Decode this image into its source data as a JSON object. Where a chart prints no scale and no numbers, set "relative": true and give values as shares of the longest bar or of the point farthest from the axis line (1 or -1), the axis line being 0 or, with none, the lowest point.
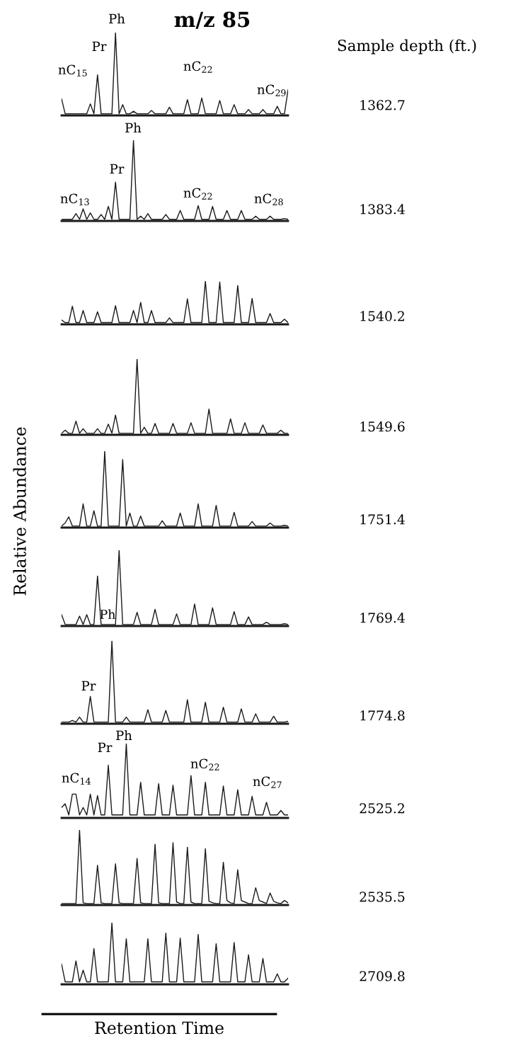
{
  "chart_data": [
    {
      "type": "line",
      "relative": true,
      "title": "m/z 85",
      "color": "#1a1a1a",
      "categories": [
        null,
        null,
        null,
        null,
        null,
        null,
        null,
        null,
        null,
        null,
        null,
        null,
        null,
        null,
        null,
        null,
        null,
        null,
        null,
        null,
        null,
        null,
        null,
        null,
        null,
        null,
        null,
        null,
        null,
        null,
        null,
        null,
        null,
        null,
        null,
        null,
        null,
        null,
        null,
        null,
        null,
        null,
        null,
        null,
        null,
        null,
        null,
        null,
        null,
        null,
        null,
        null,
        null,
        null,
        null,
        null,
        null,
        null,
        null,
        null,
        null,
        null,
        null,
        null
      ],
      "values": [
        0.2,
        0.02,
        0.02,
        0.02,
        0.02,
        0.02,
        0.02,
        0.02,
        0.14,
        0.02,
        0.49,
        0.02,
        0.02,
        0.02,
        0.02,
        1,
        0.02,
        0.13,
        0.02,
        0.02,
        0.05,
        0.02,
        0.02,
        0.02,
        0.02,
        0.06,
        0.02,
        0.02,
        0.02,
        0.02,
        0.1,
        0.02,
        0.02,
        0.02,
        0.02,
        0.19,
        0.02,
        0.02,
        0.02,
        0.21,
        0.02,
        0.02,
        0.02,
        0.02,
        0.18,
        0.02,
        0.02,
        0.02,
        0.13,
        0.02,
        0.02,
        0.02,
        0.07,
        0.02,
        0.02,
        0.02,
        0.07,
        0.02,
        0.02,
        0.02,
        0.11,
        0.02,
        0.02,
        0.31
      ],
      "annotations": [
        "1362.7",
        "Sample depth (ft.)",
        "Ph",
        "Pr",
        "nC$_{15}$",
        "nC$_{22}$",
        "nC$_{29}$"
      ]
    },
    {
      "type": "line",
      "relative": true,
      "color": "#1a1a1a",
      "categories": [
        null,
        null,
        null,
        null,
        null,
        null,
        null,
        null,
        null,
        null,
        null,
        null,
        null,
        null,
        null,
        null,
        null,
        null,
        null,
        null,
        null,
        null,
        null,
        null,
        null,
        null,
        null,
        null,
        null,
        null,
        null,
        null,
        null,
        null,
        null,
        null,
        null,
        null,
        null,
        null,
        null,
        null,
        null,
        null,
        null,
        null,
        null,
        null,
        null,
        null,
        null,
        null,
        null,
        null,
        null,
        null,
        null,
        null,
        null,
        null,
        null,
        null,
        null,
        null
      ],
      "values": [
        0.02,
        0.02,
        0.02,
        0.02,
        0.09,
        0.02,
        0.15,
        0.02,
        0.1,
        0.02,
        0.02,
        0.08,
        0.02,
        0.18,
        0.02,
        0.48,
        0.02,
        0.02,
        0.02,
        0.02,
        1,
        0.02,
        0.06,
        0.02,
        0.09,
        0.02,
        0.02,
        0.02,
        0.02,
        0.08,
        0.02,
        0.02,
        0.02,
        0.13,
        0.02,
        0.02,
        0.02,
        0.02,
        0.19,
        0.02,
        0.02,
        0.02,
        0.18,
        0.02,
        0.02,
        0.02,
        0.13,
        0.02,
        0.02,
        0.02,
        0.13,
        0.02,
        0.02,
        0.02,
        0.06,
        0.02,
        0.02,
        0.02,
        0.06,
        0.02,
        0.02,
        0.02,
        0.03,
        0.02
      ],
      "annotations": [
        "1383.4",
        "Ph",
        "Pr",
        "nC$_{13}$",
        "nC$_{22}$",
        "nC$_{28}$"
      ]
    },
    {
      "type": "line",
      "relative": true,
      "color": "#1a1a1a",
      "categories": [
        null,
        null,
        null,
        null,
        null,
        null,
        null,
        null,
        null,
        null,
        null,
        null,
        null,
        null,
        null,
        null,
        null,
        null,
        null,
        null,
        null,
        null,
        null,
        null,
        null,
        null,
        null,
        null,
        null,
        null,
        null,
        null,
        null,
        null,
        null,
        null,
        null,
        null,
        null,
        null,
        null,
        null,
        null,
        null,
        null,
        null,
        null,
        null,
        null,
        null,
        null,
        null,
        null,
        null,
        null,
        null,
        null,
        null,
        null,
        null,
        null,
        null,
        null,
        null
      ],
      "values": [
        0.1,
        0.04,
        0.04,
        0.42,
        0.04,
        0.04,
        0.32,
        0.04,
        0.04,
        0.04,
        0.29,
        0.04,
        0.04,
        0.04,
        0.04,
        0.43,
        0.04,
        0.04,
        0.04,
        0.04,
        0.32,
        0.04,
        0.51,
        0.04,
        0.04,
        0.32,
        0.04,
        0.04,
        0.04,
        0.04,
        0.15,
        0.04,
        0.04,
        0.04,
        0.04,
        0.59,
        0.04,
        0.04,
        0.04,
        0.04,
        1,
        0.04,
        0.04,
        0.04,
        0.98,
        0.04,
        0.04,
        0.04,
        0.04,
        0.9,
        0.04,
        0.04,
        0.04,
        0.6,
        0.04,
        0.04,
        0.04,
        0.04,
        0.25,
        0.04,
        0.04,
        0.04,
        0.12,
        0.04
      ],
      "annotations": [
        "1540.2"
      ]
    },
    {
      "type": "line",
      "relative": true,
      "color": "#1a1a1a",
      "categories": [
        null,
        null,
        null,
        null,
        null,
        null,
        null,
        null,
        null,
        null,
        null,
        null,
        null,
        null,
        null,
        null,
        null,
        null,
        null,
        null,
        null,
        null,
        null,
        null,
        null,
        null,
        null,
        null,
        null,
        null,
        null,
        null,
        null,
        null,
        null,
        null,
        null,
        null,
        null,
        null,
        null,
        null,
        null,
        null,
        null,
        null,
        null,
        null,
        null,
        null,
        null,
        null,
        null,
        null,
        null,
        null,
        null,
        null,
        null,
        null,
        null,
        null,
        null,
        null
      ],
      "values": [
        0.02,
        0.06,
        0.02,
        0.02,
        0.18,
        0.02,
        0.08,
        0.02,
        0.02,
        0.02,
        0.08,
        0.02,
        0.02,
        0.14,
        0.02,
        0.26,
        0.02,
        0.02,
        0.02,
        0.02,
        0.02,
        1,
        0.02,
        0.1,
        0.02,
        0.02,
        0.15,
        0.02,
        0.02,
        0.02,
        0.02,
        0.15,
        0.02,
        0.02,
        0.02,
        0.02,
        0.16,
        0.02,
        0.02,
        0.02,
        0.02,
        0.34,
        0.02,
        0.02,
        0.02,
        0.02,
        0.02,
        0.21,
        0.02,
        0.02,
        0.02,
        0.16,
        0.02,
        0.02,
        0.02,
        0.02,
        0.13,
        0.02,
        0.02,
        0.02,
        0.02,
        0.06,
        0.02,
        0.02
      ],
      "annotations": [
        "1549.6"
      ]
    },
    {
      "type": "line",
      "relative": true,
      "ylabel": "Relative Abundance",
      "color": "#1a1a1a",
      "categories": [
        null,
        null,
        null,
        null,
        null,
        null,
        null,
        null,
        null,
        null,
        null,
        null,
        null,
        null,
        null,
        null,
        null,
        null,
        null,
        null,
        null,
        null,
        null,
        null,
        null,
        null,
        null,
        null,
        null,
        null,
        null,
        null,
        null,
        null,
        null,
        null,
        null,
        null,
        null,
        null,
        null,
        null,
        null,
        null,
        null,
        null,
        null,
        null,
        null,
        null,
        null,
        null,
        null,
        null,
        null,
        null,
        null,
        null,
        null,
        null,
        null,
        null,
        null,
        null
      ],
      "values": [
        0.02,
        0.06,
        0.14,
        0.02,
        0.02,
        0.02,
        0.31,
        0.02,
        0.02,
        0.22,
        0.02,
        0.02,
        1,
        0.02,
        0.02,
        0.02,
        0.02,
        0.89,
        0.02,
        0.19,
        0.02,
        0.02,
        0.15,
        0.02,
        0.02,
        0.02,
        0.02,
        0.02,
        0.09,
        0.02,
        0.02,
        0.02,
        0.02,
        0.19,
        0.02,
        0.02,
        0.02,
        0.02,
        0.31,
        0.02,
        0.02,
        0.02,
        0.02,
        0.29,
        0.02,
        0.02,
        0.02,
        0.02,
        0.2,
        0.02,
        0.02,
        0.02,
        0.02,
        0.08,
        0.02,
        0.02,
        0.02,
        0.02,
        0.06,
        0.02,
        0.02,
        0.02,
        0.03,
        0.02
      ],
      "annotations": [
        "1751.4"
      ]
    },
    {
      "type": "line",
      "relative": true,
      "color": "#1a1a1a",
      "categories": [
        null,
        null,
        null,
        null,
        null,
        null,
        null,
        null,
        null,
        null,
        null,
        null,
        null,
        null,
        null,
        null,
        null,
        null,
        null,
        null,
        null,
        null,
        null,
        null,
        null,
        null,
        null,
        null,
        null,
        null,
        null,
        null,
        null,
        null,
        null,
        null,
        null,
        null,
        null,
        null,
        null,
        null,
        null,
        null,
        null,
        null,
        null,
        null,
        null,
        null,
        null,
        null,
        null,
        null,
        null,
        null,
        null,
        null,
        null,
        null,
        null,
        null,
        null,
        null
      ],
      "values": [
        0.15,
        0.02,
        0.02,
        0.02,
        0.02,
        0.13,
        0.02,
        0.15,
        0.02,
        0.02,
        0.66,
        0.02,
        0.02,
        0.02,
        0.02,
        0.02,
        1,
        0.02,
        0.02,
        0.02,
        0.02,
        0.18,
        0.02,
        0.02,
        0.02,
        0.02,
        0.22,
        0.02,
        0.02,
        0.02,
        0.02,
        0.02,
        0.16,
        0.02,
        0.02,
        0.02,
        0.02,
        0.29,
        0.02,
        0.02,
        0.02,
        0.02,
        0.24,
        0.02,
        0.02,
        0.02,
        0.02,
        0.02,
        0.19,
        0.02,
        0.02,
        0.02,
        0.12,
        0.02,
        0.02,
        0.02,
        0.02,
        0.05,
        0.02,
        0.02,
        0.02,
        0.02,
        0.03,
        0.02
      ],
      "annotations": [
        "1769.4"
      ]
    },
    {
      "type": "line",
      "relative": true,
      "color": "#1a1a1a",
      "categories": [
        null,
        null,
        null,
        null,
        null,
        null,
        null,
        null,
        null,
        null,
        null,
        null,
        null,
        null,
        null,
        null,
        null,
        null,
        null,
        null,
        null,
        null,
        null,
        null,
        null,
        null,
        null,
        null,
        null,
        null,
        null,
        null,
        null,
        null,
        null,
        null,
        null,
        null,
        null,
        null,
        null,
        null,
        null,
        null,
        null,
        null,
        null,
        null,
        null,
        null,
        null,
        null,
        null,
        null,
        null,
        null,
        null,
        null,
        null,
        null,
        null,
        null,
        null,
        null
      ],
      "values": [
        0.02,
        0.02,
        0.02,
        0.04,
        0.02,
        0.08,
        0.02,
        0.02,
        0.33,
        0.02,
        0.02,
        0.02,
        0.02,
        0.02,
        1,
        0.02,
        0.02,
        0.02,
        0.08,
        0.02,
        0.02,
        0.02,
        0.02,
        0.02,
        0.17,
        0.02,
        0.02,
        0.02,
        0.02,
        0.16,
        0.02,
        0.02,
        0.02,
        0.02,
        0.02,
        0.29,
        0.02,
        0.02,
        0.02,
        0.02,
        0.26,
        0.02,
        0.02,
        0.02,
        0.02,
        0.2,
        0.02,
        0.02,
        0.02,
        0.02,
        0.18,
        0.02,
        0.02,
        0.02,
        0.12,
        0.02,
        0.02,
        0.02,
        0.02,
        0.09,
        0.02,
        0.02,
        0.02,
        0.03
      ],
      "annotations": [
        "1774.8",
        "Ph",
        "Pr"
      ]
    },
    {
      "type": "line",
      "relative": true,
      "color": "#1a1a1a",
      "categories": [
        null,
        null,
        null,
        null,
        null,
        null,
        null,
        null,
        null,
        null,
        null,
        null,
        null,
        null,
        null,
        null,
        null,
        null,
        null,
        null,
        null,
        null,
        null,
        null,
        null,
        null,
        null,
        null,
        null,
        null,
        null,
        null,
        null,
        null,
        null,
        null,
        null,
        null,
        null,
        null,
        null,
        null,
        null,
        null,
        null,
        null,
        null,
        null,
        null,
        null,
        null,
        null,
        null,
        null,
        null,
        null,
        null,
        null,
        null,
        null,
        null,
        null,
        null,
        null
      ],
      "values": [
        0.14,
        0.19,
        0.04,
        0.32,
        0.32,
        0.04,
        0.14,
        0.04,
        0.32,
        0.04,
        0.3,
        0.04,
        0.04,
        0.71,
        0.04,
        0.04,
        0.04,
        0.04,
        1,
        0.04,
        0.04,
        0.04,
        0.48,
        0.04,
        0.04,
        0.04,
        0.04,
        0.46,
        0.04,
        0.04,
        0.04,
        0.44,
        0.04,
        0.04,
        0.04,
        0.04,
        0.57,
        0.04,
        0.04,
        0.04,
        0.48,
        0.04,
        0.04,
        0.04,
        0.04,
        0.43,
        0.04,
        0.04,
        0.04,
        0.38,
        0.04,
        0.04,
        0.04,
        0.29,
        0.04,
        0.04,
        0.04,
        0.21,
        0.04,
        0.04,
        0.04,
        0.1,
        0.04,
        0.04
      ],
      "annotations": [
        "2525.2",
        "Ph",
        "Pr",
        "nC$_{14}$",
        "nC$_{22}$",
        "nC$_{27}$"
      ]
    },
    {
      "type": "line",
      "relative": true,
      "color": "#1a1a1a",
      "categories": [
        null,
        null,
        null,
        null,
        null,
        null,
        null,
        null,
        null,
        null,
        null,
        null,
        null,
        null,
        null,
        null,
        null,
        null,
        null,
        null,
        null,
        null,
        null,
        null,
        null,
        null,
        null,
        null,
        null,
        null,
        null,
        null,
        null,
        null,
        null,
        null,
        null,
        null,
        null,
        null,
        null,
        null,
        null,
        null,
        null,
        null,
        null,
        null,
        null,
        null,
        null,
        null,
        null,
        null,
        null,
        null,
        null,
        null,
        null,
        null,
        null,
        null,
        null,
        null
      ],
      "values": [
        0.02,
        0.02,
        0.02,
        0.02,
        0.02,
        1,
        0.03,
        0.02,
        0.02,
        0.02,
        0.53,
        0.03,
        0.02,
        0.02,
        0.02,
        0.55,
        0.03,
        0.02,
        0.02,
        0.02,
        0.02,
        0.62,
        0.03,
        0.02,
        0.02,
        0.02,
        0.81,
        0.03,
        0.02,
        0.02,
        0.02,
        0.83,
        0.04,
        0.02,
        0.02,
        0.77,
        0.04,
        0.02,
        0.02,
        0.02,
        0.75,
        0.05,
        0.03,
        0.02,
        0.02,
        0.57,
        0.06,
        0.03,
        0.02,
        0.47,
        0.06,
        0.04,
        0.02,
        0.02,
        0.23,
        0.06,
        0.04,
        0.02,
        0.16,
        0.05,
        0.03,
        0.02,
        0.06,
        0.03
      ],
      "annotations": [
        "2535.5"
      ]
    },
    {
      "type": "line",
      "relative": true,
      "xlabel": "Retention Time",
      "color": "#1a1a1a",
      "categories": [
        null,
        null,
        null,
        null,
        null,
        null,
        null,
        null,
        null,
        null,
        null,
        null,
        null,
        null,
        null,
        null,
        null,
        null,
        null,
        null,
        null,
        null,
        null,
        null,
        null,
        null,
        null,
        null,
        null,
        null,
        null,
        null,
        null,
        null,
        null,
        null,
        null,
        null,
        null,
        null,
        null,
        null,
        null,
        null,
        null,
        null,
        null,
        null,
        null,
        null,
        null,
        null,
        null,
        null,
        null,
        null,
        null,
        null,
        null,
        null,
        null,
        null,
        null,
        null
      ],
      "values": [
        0.33,
        0.04,
        0.04,
        0.04,
        0.38,
        0.04,
        0.23,
        0.04,
        0.04,
        0.58,
        0.04,
        0.04,
        0.04,
        0.04,
        1,
        0.04,
        0.04,
        0.04,
        0.74,
        0.04,
        0.04,
        0.04,
        0.04,
        0.04,
        0.74,
        0.04,
        0.04,
        0.04,
        0.04,
        0.83,
        0.04,
        0.04,
        0.04,
        0.75,
        0.04,
        0.04,
        0.04,
        0.04,
        0.81,
        0.04,
        0.04,
        0.04,
        0.04,
        0.66,
        0.04,
        0.04,
        0.04,
        0.04,
        0.68,
        0.04,
        0.04,
        0.04,
        0.48,
        0.04,
        0.04,
        0.04,
        0.42,
        0.04,
        0.04,
        0.04,
        0.17,
        0.04,
        0.04,
        0.1
      ],
      "annotations": [
        "2709.8"
      ]
    }
  ]
}
